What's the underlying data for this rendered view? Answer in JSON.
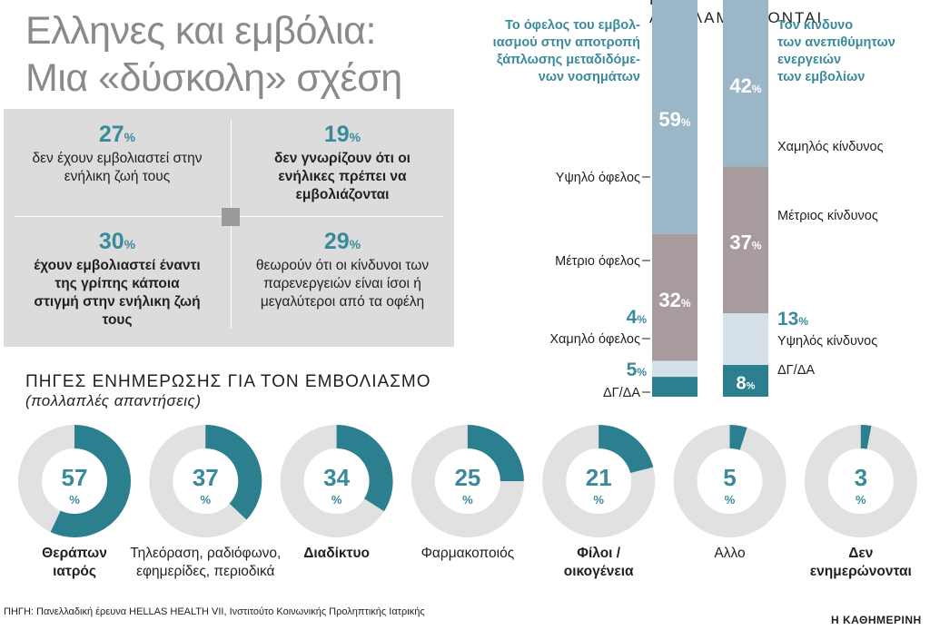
{
  "title_line1": "Ελληνες και εμβόλια:",
  "title_line2": "Μια «δύσκολη» σχέση",
  "perception_header": "ΠΩΣ ΑΝΤΙΛΑΜΒΑΝΟΝΤΑΙ",
  "stats": [
    {
      "pct": "27",
      "text": "δεν έχουν εμβολιαστεί στην ενήλικη ζωή τους",
      "bold": false
    },
    {
      "pct": "19",
      "text": "δεν γνωρίζουν ότι οι ενήλικες πρέπει να εμβολιάζονται",
      "bold": true
    },
    {
      "pct": "30",
      "text": "έχουν εμβολιαστεί έναντι της γρίπης κάποια στιγμή στην ενήλικη ζωή τους",
      "bold": true
    },
    {
      "pct": "29",
      "text": "θεωρούν ότι οι κίνδυνοι των παρενεργειών είναι ίσοι ή μεγαλύτεροι από τα οφέλη",
      "bold": false
    }
  ],
  "percent_sign": "%",
  "sources_title": "ΠΗΓΕΣ ΕΝΗΜΕΡΩΣΗΣ ΓΙΑ ΤΟΝ ΕΜΒΟΛΙΑΣΜΟ",
  "sources_subtitle": "(πολλαπλές απαντήσεις)",
  "footer": "ΠΗΓΗ: Πανελλαδική έρευνα HELLAS HEALTH VII, Ινστιτούτο Κοινωνικής Προληπτικής Ιατρικής",
  "brand": "Η ΚΑΘΗΜΕΡΙΝΗ",
  "colors": {
    "teal": "#2b7f8e",
    "teal_text": "#3a8a9c",
    "light_blue": "#9bb6c7",
    "mauve": "#a89b9e",
    "pale_blue": "#d6e0e8",
    "donut_gray": "#e1e1e1",
    "box_gray": "#dcdcdc"
  },
  "chart_data": [
    {
      "type": "stacked-bar",
      "title": "ΠΩΣ ΑΝΤΙΛΑΜΒΑΝΟΝΤΑΙ",
      "bars": [
        {
          "name": "Το όφελος του εμβολιασμού στην αποτροπή εξάπλωσης μεταδιδόμενων νοσημάτων",
          "segments": [
            {
              "label": "Υψηλό όφελος",
              "value": 59,
              "color": "#9bb6c7"
            },
            {
              "label": "Μέτριο όφελος",
              "value": 32,
              "color": "#a89b9e"
            },
            {
              "label": "Χαμηλό όφελος",
              "value": 4,
              "color": "#d6e0e8"
            },
            {
              "label": "ΔΓ/ΔΑ",
              "value": 5,
              "color": "#2b7f8e"
            }
          ]
        },
        {
          "name": "Τον κίνδυνο των ανεπιθύμητων ενεργειών των εμβολίων",
          "segments": [
            {
              "label": "Χαμηλός κίνδυνος",
              "value": 42,
              "color": "#9bb6c7"
            },
            {
              "label": "Μέτριος κίνδυνος",
              "value": 37,
              "color": "#a89b9e"
            },
            {
              "label": "Υψηλός κίνδυνος",
              "value": 13,
              "color": "#d6e0e8"
            },
            {
              "label": "ΔΓ/ΔΑ",
              "value": 8,
              "color": "#2b7f8e"
            }
          ]
        }
      ]
    },
    {
      "type": "donut",
      "title": "ΠΗΓΕΣ ΕΝΗΜΕΡΩΣΗΣ ΓΙΑ ΤΟΝ ΕΜΒΟΛΙΑΣΜΟ",
      "subtitle": "(πολλαπλές απαντήσεις)",
      "items": [
        {
          "label": "Θεράπων ιατρός",
          "value": 57,
          "bold": true
        },
        {
          "label": "Τηλεόραση, ραδιόφωνο, εφημερίδες, περιοδικά",
          "value": 37,
          "bold": false
        },
        {
          "label": "Διαδίκτυο",
          "value": 34,
          "bold": true
        },
        {
          "label": "Φαρμακοποιός",
          "value": 25,
          "bold": false
        },
        {
          "label": "Φίλοι /οικογένεια",
          "value": 21,
          "bold": true
        },
        {
          "label": "Αλλο",
          "value": 5,
          "bold": false
        },
        {
          "label": "Δεν ενημερώνονται",
          "value": 3,
          "bold": true
        }
      ]
    }
  ]
}
